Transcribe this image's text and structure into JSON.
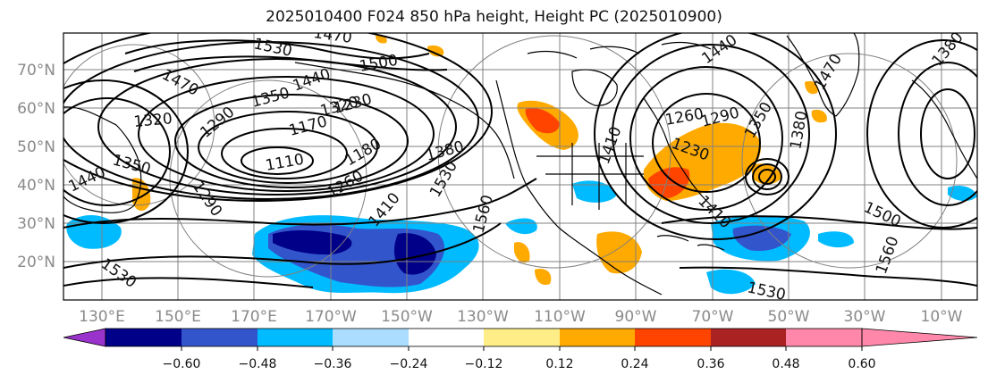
{
  "title": "2025010400 F024 850 hPa height, Height PC (2025010900)",
  "map": {
    "lat_ticks": [
      "70°N",
      "60°N",
      "50°N",
      "40°N",
      "30°N",
      "20°N"
    ],
    "lon_ticks": [
      "130°E",
      "150°E",
      "170°E",
      "170°W",
      "150°W",
      "130°W",
      "110°W",
      "90°W",
      "70°W",
      "50°W",
      "30°W",
      "10°W"
    ],
    "contour_labels": [
      "1530",
      "1470",
      "1500",
      "1440",
      "1470",
      "1350",
      "1320",
      "1320",
      "1290",
      "1230",
      "1170",
      "1110",
      "1180",
      "1260",
      "1290",
      "1380",
      "1410",
      "1530",
      "1560",
      "1350",
      "1440",
      "1260",
      "1290",
      "1230",
      "1350",
      "1380",
      "1410",
      "1440",
      "1500",
      "1560",
      "1530",
      "1530",
      "1380",
      "1470",
      "1410"
    ],
    "land_color": "#000000",
    "gridline_color": "#808080"
  },
  "colorbar": {
    "colors": [
      "#9933cc",
      "#000088",
      "#3355cc",
      "#00bbff",
      "#aaddff",
      "#ffffff",
      "#ffee88",
      "#ffaa00",
      "#ff4400",
      "#aa2222",
      "#ff88aa"
    ],
    "tick_labels": [
      "−0.60",
      "−0.48",
      "−0.36",
      "−0.24",
      "−0.12",
      "0.12",
      "0.24",
      "0.36",
      "0.48",
      "0.60"
    ]
  }
}
